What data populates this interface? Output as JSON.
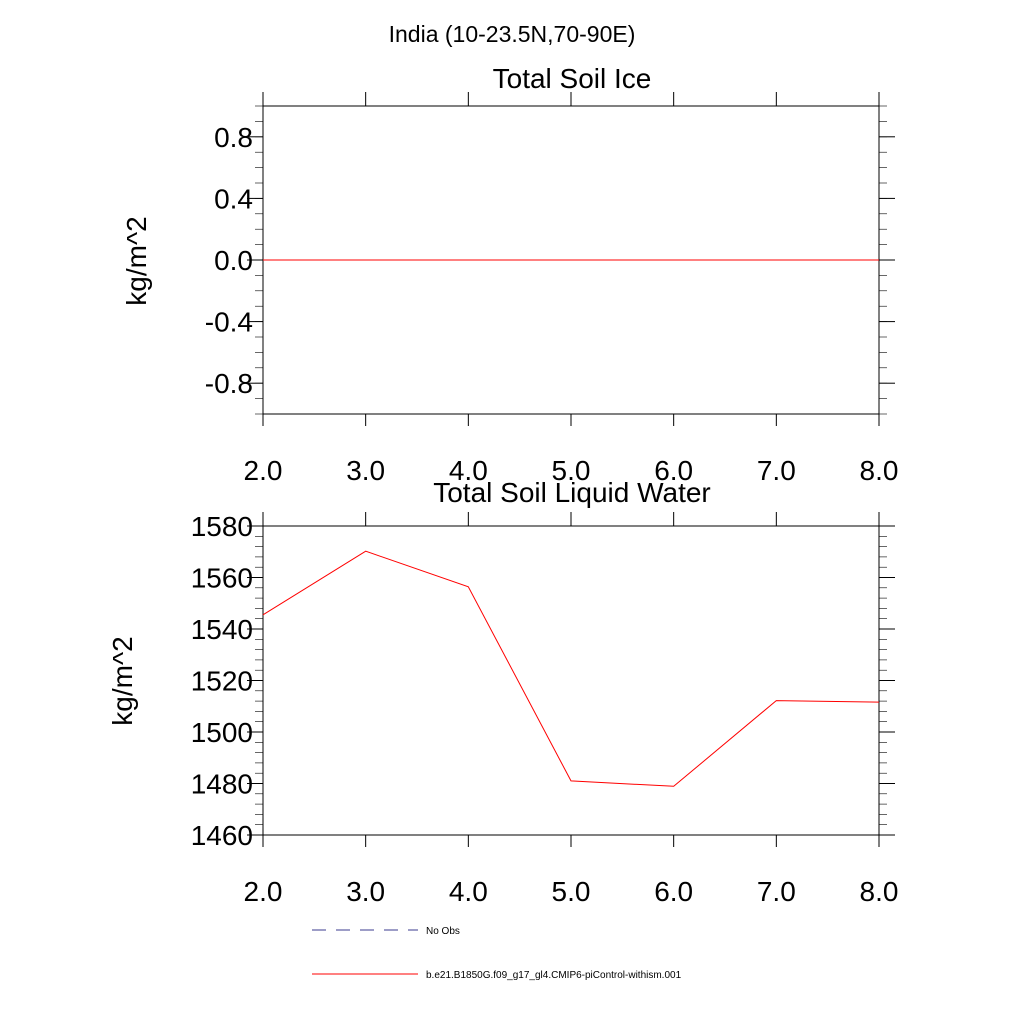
{
  "figure": {
    "title": "India (10-23.5N,70-90E)"
  },
  "chart_data": [
    {
      "type": "line",
      "title": "Total Soil Ice",
      "xlabel": "",
      "ylabel": "kg/m^2",
      "xlim": [
        2.0,
        8.0
      ],
      "ylim": [
        -1.0,
        1.0
      ],
      "x_ticks": [
        2.0,
        3.0,
        4.0,
        5.0,
        6.0,
        7.0,
        8.0
      ],
      "x_tick_labels": [
        "2.0",
        "3.0",
        "4.0",
        "5.0",
        "6.0",
        "7.0",
        "8.0"
      ],
      "y_ticks": [
        -0.8,
        -0.4,
        0.0,
        0.4,
        0.8
      ],
      "y_tick_labels": [
        "-0.8",
        "-0.4",
        "0.0",
        "0.4",
        "0.8"
      ],
      "y_minor_step": 0.1,
      "series": [
        {
          "name": "b.e21.B1850G.f09_g17_gl4.CMIP6-piControl-withism.001",
          "color": "#ff0000",
          "x": [
            2,
            3,
            4,
            5,
            6,
            7,
            8
          ],
          "values": [
            0,
            0,
            0,
            0,
            0,
            0,
            0
          ]
        }
      ]
    },
    {
      "type": "line",
      "title": "Total Soil Liquid Water",
      "xlabel": "",
      "ylabel": "kg/m^2",
      "xlim": [
        2.0,
        8.0
      ],
      "ylim": [
        1460,
        1580
      ],
      "x_ticks": [
        2.0,
        3.0,
        4.0,
        5.0,
        6.0,
        7.0,
        8.0
      ],
      "x_tick_labels": [
        "2.0",
        "3.0",
        "4.0",
        "5.0",
        "6.0",
        "7.0",
        "8.0"
      ],
      "y_ticks": [
        1460,
        1480,
        1500,
        1520,
        1540,
        1560,
        1580
      ],
      "y_tick_labels": [
        "1460",
        "1480",
        "1500",
        "1520",
        "1540",
        "1560",
        "1580"
      ],
      "y_minor_step": 4,
      "series": [
        {
          "name": "b.e21.B1850G.f09_g17_gl4.CMIP6-piControl-withism.001",
          "color": "#ff0000",
          "x": [
            2,
            3,
            4,
            5,
            6,
            7,
            8
          ],
          "values": [
            1545.5,
            1570.2,
            1556.4,
            1481.0,
            1478.9,
            1512.2,
            1511.6
          ]
        }
      ]
    }
  ],
  "legend": [
    {
      "label": "No Obs",
      "style": "dashed",
      "color": "#3b3b8f"
    },
    {
      "label": "b.e21.B1850G.f09_g17_gl4.CMIP6-piControl-withism.001",
      "style": "solid",
      "color": "#ff0000"
    }
  ]
}
